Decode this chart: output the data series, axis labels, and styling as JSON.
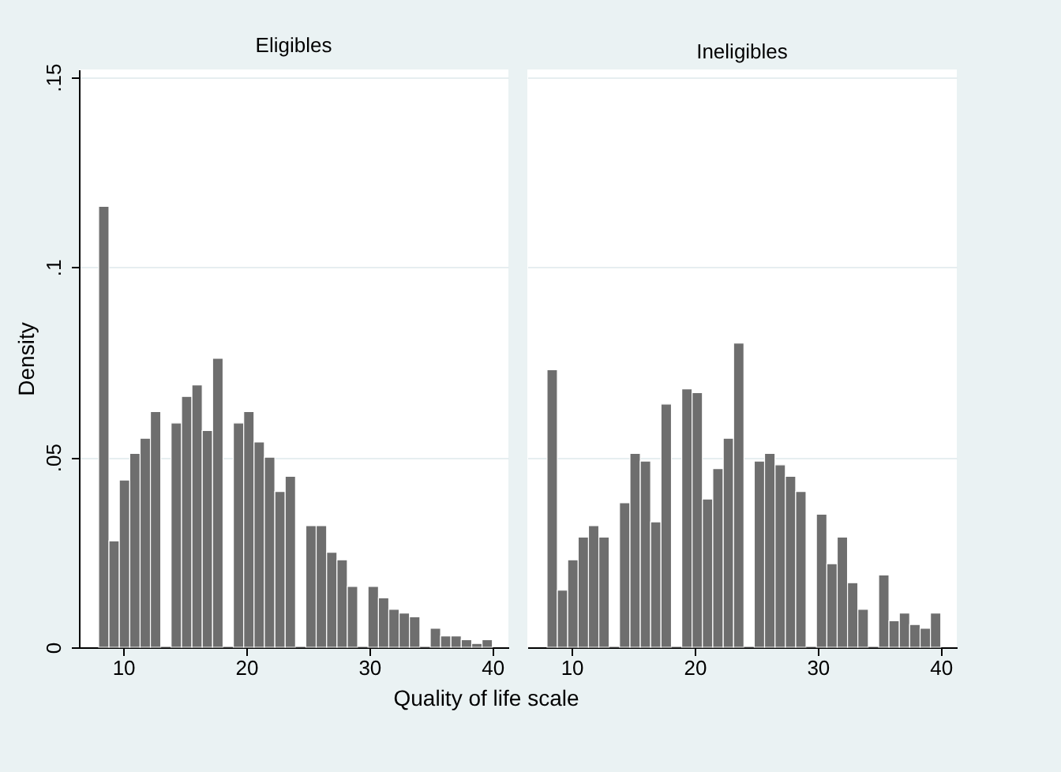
{
  "chart_data": [
    {
      "type": "histogram",
      "title": "Eligibles",
      "ylabel": "Density",
      "xlabel": "Quality of life scale",
      "color": "#6e6e6e",
      "grid": "y",
      "bins": [
        8,
        8.84,
        9.68,
        10.53,
        11.37,
        12.21,
        13.05,
        13.89,
        14.74,
        15.58,
        16.42,
        17.26,
        18.11,
        18.95,
        19.79,
        20.63,
        21.47,
        22.32,
        23.16,
        24,
        24.84,
        25.68,
        26.53,
        27.37,
        28.21,
        29.05,
        29.89,
        30.74,
        31.58,
        32.42,
        33.26,
        34.11,
        34.95,
        35.79,
        36.63,
        37.47,
        38.32,
        39.16,
        40
      ],
      "values": [
        0.116,
        0.028,
        0.044,
        0.051,
        0.055,
        0.062,
        0,
        0.059,
        0.066,
        0.069,
        0.057,
        0.076,
        0,
        0.059,
        0.062,
        0.054,
        0.05,
        0.041,
        0.045,
        0,
        0.032,
        0.032,
        0.025,
        0.023,
        0.016,
        0,
        0.016,
        0.013,
        0.01,
        0.009,
        0.008,
        0,
        0.005,
        0.003,
        0.003,
        0.002,
        0.001,
        0.002
      ],
      "xlim": [
        6.4,
        41.3
      ],
      "xticks": [
        10,
        20,
        30,
        40
      ],
      "ylim": [
        0,
        0.152
      ],
      "yticks": [
        {
          "value": 0,
          "label": "0"
        },
        {
          "value": 0.05,
          "label": ".05"
        },
        {
          "value": 0.1,
          "label": ".1"
        },
        {
          "value": 0.15,
          "label": ".15"
        }
      ]
    },
    {
      "type": "histogram",
      "title": "Ineligibles",
      "color": "#6e6e6e",
      "grid": "y",
      "tick_labels": "x",
      "bins": [
        8,
        8.84,
        9.68,
        10.53,
        11.37,
        12.21,
        13.05,
        13.89,
        14.74,
        15.58,
        16.42,
        17.26,
        18.11,
        18.95,
        19.79,
        20.63,
        21.47,
        22.32,
        23.16,
        24,
        24.84,
        25.68,
        26.53,
        27.37,
        28.21,
        29.05,
        29.89,
        30.74,
        31.58,
        32.42,
        33.26,
        34.11,
        34.95,
        35.79,
        36.63,
        37.47,
        38.32,
        39.16,
        40
      ],
      "values": [
        0.073,
        0.015,
        0.023,
        0.029,
        0.032,
        0.029,
        0,
        0.038,
        0.051,
        0.049,
        0.033,
        0.064,
        0,
        0.068,
        0.067,
        0.039,
        0.047,
        0.055,
        0.08,
        0,
        0.049,
        0.051,
        0.048,
        0.045,
        0.041,
        0,
        0.035,
        0.022,
        0.029,
        0.017,
        0.01,
        0,
        0.019,
        0.007,
        0.009,
        0.006,
        0.005,
        0.009
      ],
      "xlim": [
        6.4,
        41.3
      ],
      "xticks": [
        10,
        20,
        30,
        40
      ],
      "ylim": [
        0,
        0.152
      ],
      "yticks": [
        0,
        0.05,
        0.1,
        0.15
      ]
    }
  ]
}
